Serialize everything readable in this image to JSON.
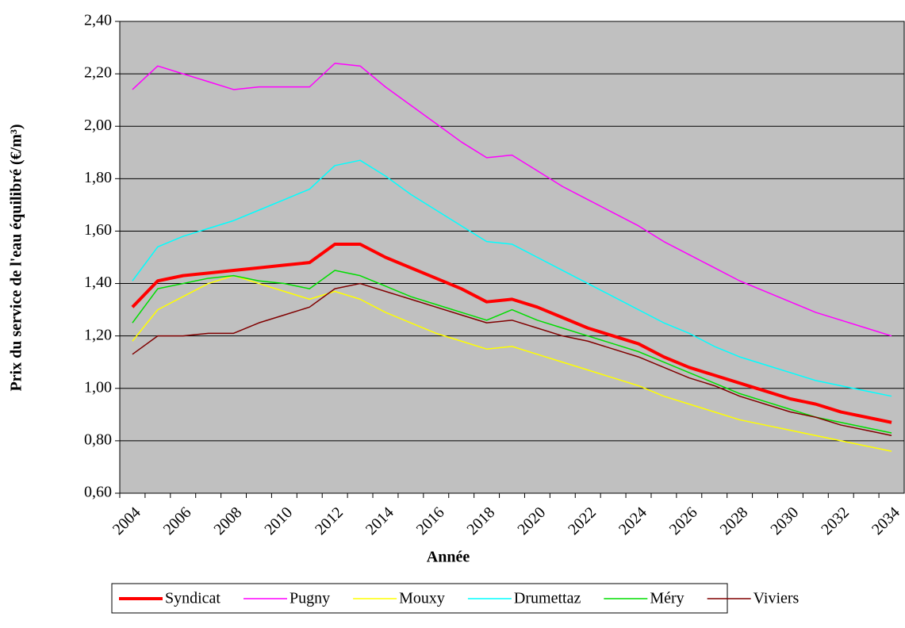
{
  "chart_data": {
    "type": "line",
    "y_label": "Prix du service de l'eau équilibré (€/m³)",
    "x_label": "Année",
    "categories": [
      "2004",
      null,
      "2006",
      null,
      "2008",
      null,
      "2010",
      null,
      "2012",
      null,
      "2014",
      null,
      "2016",
      null,
      "2018",
      null,
      "2020",
      null,
      "2022",
      null,
      "2024",
      null,
      "2026",
      null,
      "2028",
      null,
      "2030",
      null,
      "2032",
      null,
      "2034"
    ],
    "ylim": [
      0.6,
      2.4
    ],
    "yticks": [
      {
        "value": 0.6,
        "label": "0,60"
      },
      {
        "value": 0.8,
        "label": "0,80"
      },
      {
        "value": 1.0,
        "label": "1,00"
      },
      {
        "value": 1.2,
        "label": "1,20"
      },
      {
        "value": 1.4,
        "label": "1,40"
      },
      {
        "value": 1.6,
        "label": "1,60"
      },
      {
        "value": 1.8,
        "label": "1,80"
      },
      {
        "value": 2.0,
        "label": "2,00"
      },
      {
        "value": 2.2,
        "label": "2,20"
      },
      {
        "value": 2.4,
        "label": "2,40"
      }
    ],
    "grid": true,
    "background": "#c0c0c0",
    "legend": "bottom",
    "series": [
      {
        "name": "Syndicat",
        "color": "#ff0000",
        "line_width": 4,
        "values": [
          1.31,
          1.41,
          1.43,
          1.44,
          1.45,
          1.46,
          1.47,
          1.48,
          1.55,
          1.55,
          1.5,
          1.46,
          1.42,
          1.38,
          1.33,
          1.34,
          1.31,
          1.27,
          1.23,
          1.2,
          1.17,
          1.12,
          1.08,
          1.05,
          1.02,
          0.99,
          0.96,
          0.94,
          0.91,
          0.89,
          0.87
        ]
      },
      {
        "name": "Pugny",
        "color": "#ff00ff",
        "line_width": 1.5,
        "values": [
          2.14,
          2.23,
          2.2,
          2.17,
          2.14,
          2.15,
          2.15,
          2.15,
          2.24,
          2.23,
          2.15,
          2.08,
          2.01,
          1.94,
          1.88,
          1.89,
          1.83,
          1.77,
          1.72,
          1.67,
          1.62,
          1.56,
          1.51,
          1.46,
          1.41,
          1.37,
          1.33,
          1.29,
          1.26,
          1.23,
          1.2
        ]
      },
      {
        "name": "Mouxy",
        "color": "#ffff00",
        "line_width": 1.5,
        "values": [
          1.18,
          1.3,
          1.35,
          1.4,
          1.43,
          1.4,
          1.37,
          1.34,
          1.37,
          1.34,
          1.29,
          1.25,
          1.21,
          1.18,
          1.15,
          1.16,
          1.13,
          1.1,
          1.07,
          1.04,
          1.01,
          0.97,
          0.94,
          0.91,
          0.88,
          0.86,
          0.84,
          0.82,
          0.8,
          0.78,
          0.76
        ]
      },
      {
        "name": "Drumettaz",
        "color": "#00ffff",
        "line_width": 1.5,
        "values": [
          1.41,
          1.54,
          1.58,
          1.61,
          1.64,
          1.68,
          1.72,
          1.76,
          1.85,
          1.87,
          1.81,
          1.74,
          1.68,
          1.62,
          1.56,
          1.55,
          1.5,
          1.45,
          1.4,
          1.35,
          1.3,
          1.25,
          1.21,
          1.16,
          1.12,
          1.09,
          1.06,
          1.03,
          1.01,
          0.99,
          0.97
        ]
      },
      {
        "name": "Méry",
        "color": "#00dd00",
        "line_width": 1.5,
        "values": [
          1.25,
          1.38,
          1.4,
          1.42,
          1.43,
          1.41,
          1.4,
          1.38,
          1.45,
          1.43,
          1.39,
          1.35,
          1.32,
          1.29,
          1.26,
          1.3,
          1.26,
          1.23,
          1.2,
          1.17,
          1.14,
          1.1,
          1.06,
          1.02,
          0.98,
          0.95,
          0.92,
          0.89,
          0.87,
          0.85,
          0.83
        ]
      },
      {
        "name": "Viviers",
        "color": "#800000",
        "line_width": 1.5,
        "values": [
          1.13,
          1.2,
          1.2,
          1.21,
          1.21,
          1.25,
          1.28,
          1.31,
          1.38,
          1.4,
          1.37,
          1.34,
          1.31,
          1.28,
          1.25,
          1.26,
          1.23,
          1.2,
          1.18,
          1.15,
          1.12,
          1.08,
          1.04,
          1.01,
          0.97,
          0.94,
          0.91,
          0.89,
          0.86,
          0.84,
          0.82
        ]
      }
    ]
  }
}
